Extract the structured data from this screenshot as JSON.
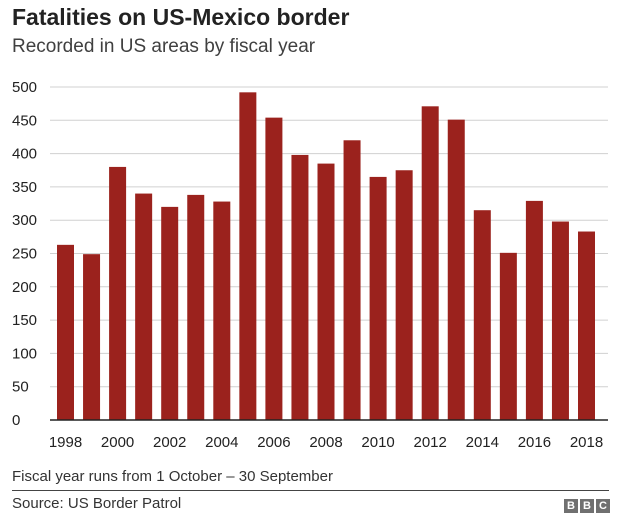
{
  "chart_data": {
    "type": "bar",
    "title": "Fatalities on US-Mexico border",
    "subtitle": "Recorded in US areas by fiscal year",
    "categories": [
      "1998",
      "1999",
      "2000",
      "2001",
      "2002",
      "2003",
      "2004",
      "2005",
      "2006",
      "2007",
      "2008",
      "2009",
      "2010",
      "2011",
      "2012",
      "2013",
      "2014",
      "2015",
      "2016",
      "2017",
      "2018"
    ],
    "values": [
      263,
      249,
      380,
      340,
      320,
      338,
      328,
      492,
      454,
      398,
      385,
      420,
      365,
      375,
      471,
      451,
      315,
      251,
      329,
      298,
      283
    ],
    "x_tick_labels": [
      "1998",
      "2000",
      "2002",
      "2004",
      "2006",
      "2008",
      "2010",
      "2012",
      "2014",
      "2016",
      "2018"
    ],
    "y_ticks": [
      0,
      50,
      100,
      150,
      200,
      250,
      300,
      350,
      400,
      450,
      500
    ],
    "ylim": [
      0,
      500
    ],
    "xlabel": "",
    "ylabel": "",
    "grid": true,
    "bar_color": "#9b221d"
  },
  "footer": {
    "note": "Fiscal year runs from 1 October – 30 September",
    "source": "Source: US Border Patrol",
    "logo": "BBC"
  }
}
